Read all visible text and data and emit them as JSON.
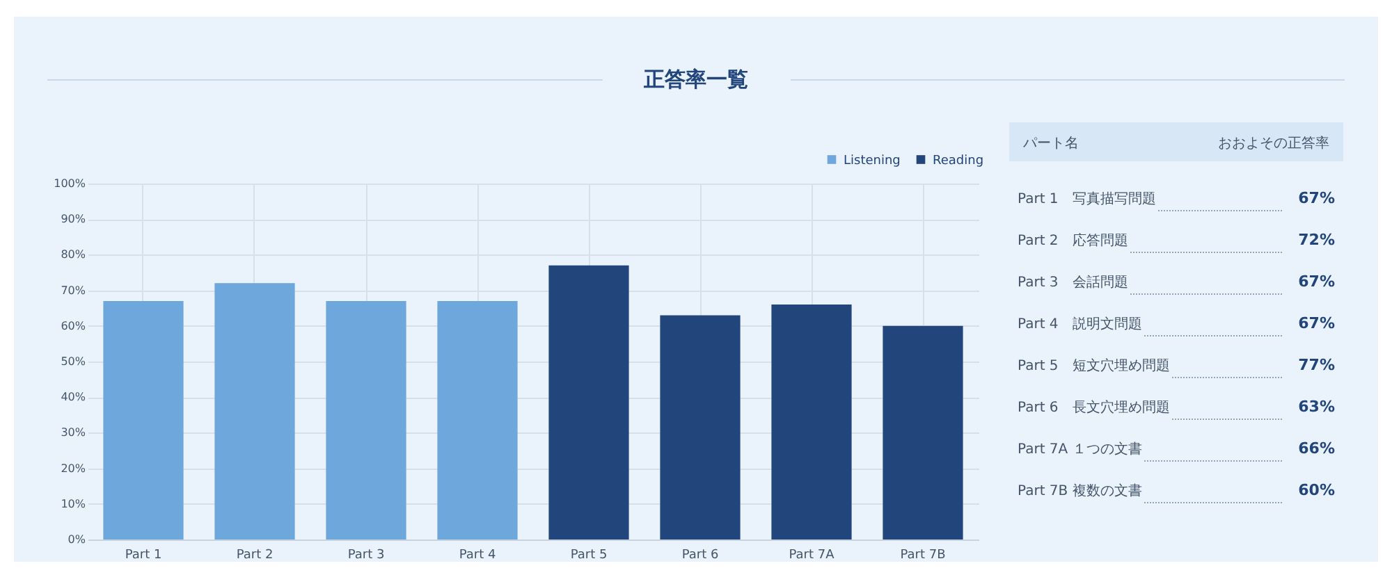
{
  "chart_data": [
    {
      "type": "bar",
      "title": "正答率一覧",
      "categories": [
        "Part 1",
        "Part 2",
        "Part 3",
        "Part 4",
        "Part 5",
        "Part 6",
        "Part 7A",
        "Part 7B"
      ],
      "series": [
        {
          "name": "Listening",
          "color": "#6ea7dc",
          "values": [
            67,
            72,
            67,
            67,
            null,
            null,
            null,
            null
          ]
        },
        {
          "name": "Reading",
          "color": "#22467b",
          "values": [
            null,
            null,
            null,
            null,
            77,
            63,
            66,
            60
          ]
        }
      ],
      "ylim": [
        0,
        100
      ],
      "yticks": [
        {
          "value": 0,
          "label": "0%"
        },
        {
          "value": 10,
          "label": "10%"
        },
        {
          "value": 20,
          "label": "20%"
        },
        {
          "value": 30,
          "label": "30%"
        },
        {
          "value": 40,
          "label": "40%"
        },
        {
          "value": 50,
          "label": "50%"
        },
        {
          "value": 60,
          "label": "60%"
        },
        {
          "value": 70,
          "label": "70%"
        },
        {
          "value": 80,
          "label": "80%"
        },
        {
          "value": 90,
          "label": "90%"
        },
        {
          "value": 100,
          "label": "100%"
        }
      ],
      "grid": true,
      "legend": "top right"
    },
    {
      "type": "other",
      "annotations": [
        "パート名",
        "おおよその正答率",
        "Part 1　写真描写問題",
        "67%",
        "Part 2　応答問題",
        "72%",
        "Part 3　会話問題",
        "67%",
        "Part 4　説明文問題",
        "67%",
        "Part 5　短文穴埋め問題",
        "77%",
        "Part 6　長文穴埋め問題",
        "63%",
        "Part 7A １つの文書",
        "66%",
        "Part 7B 複数の文書",
        "60%"
      ]
    }
  ]
}
